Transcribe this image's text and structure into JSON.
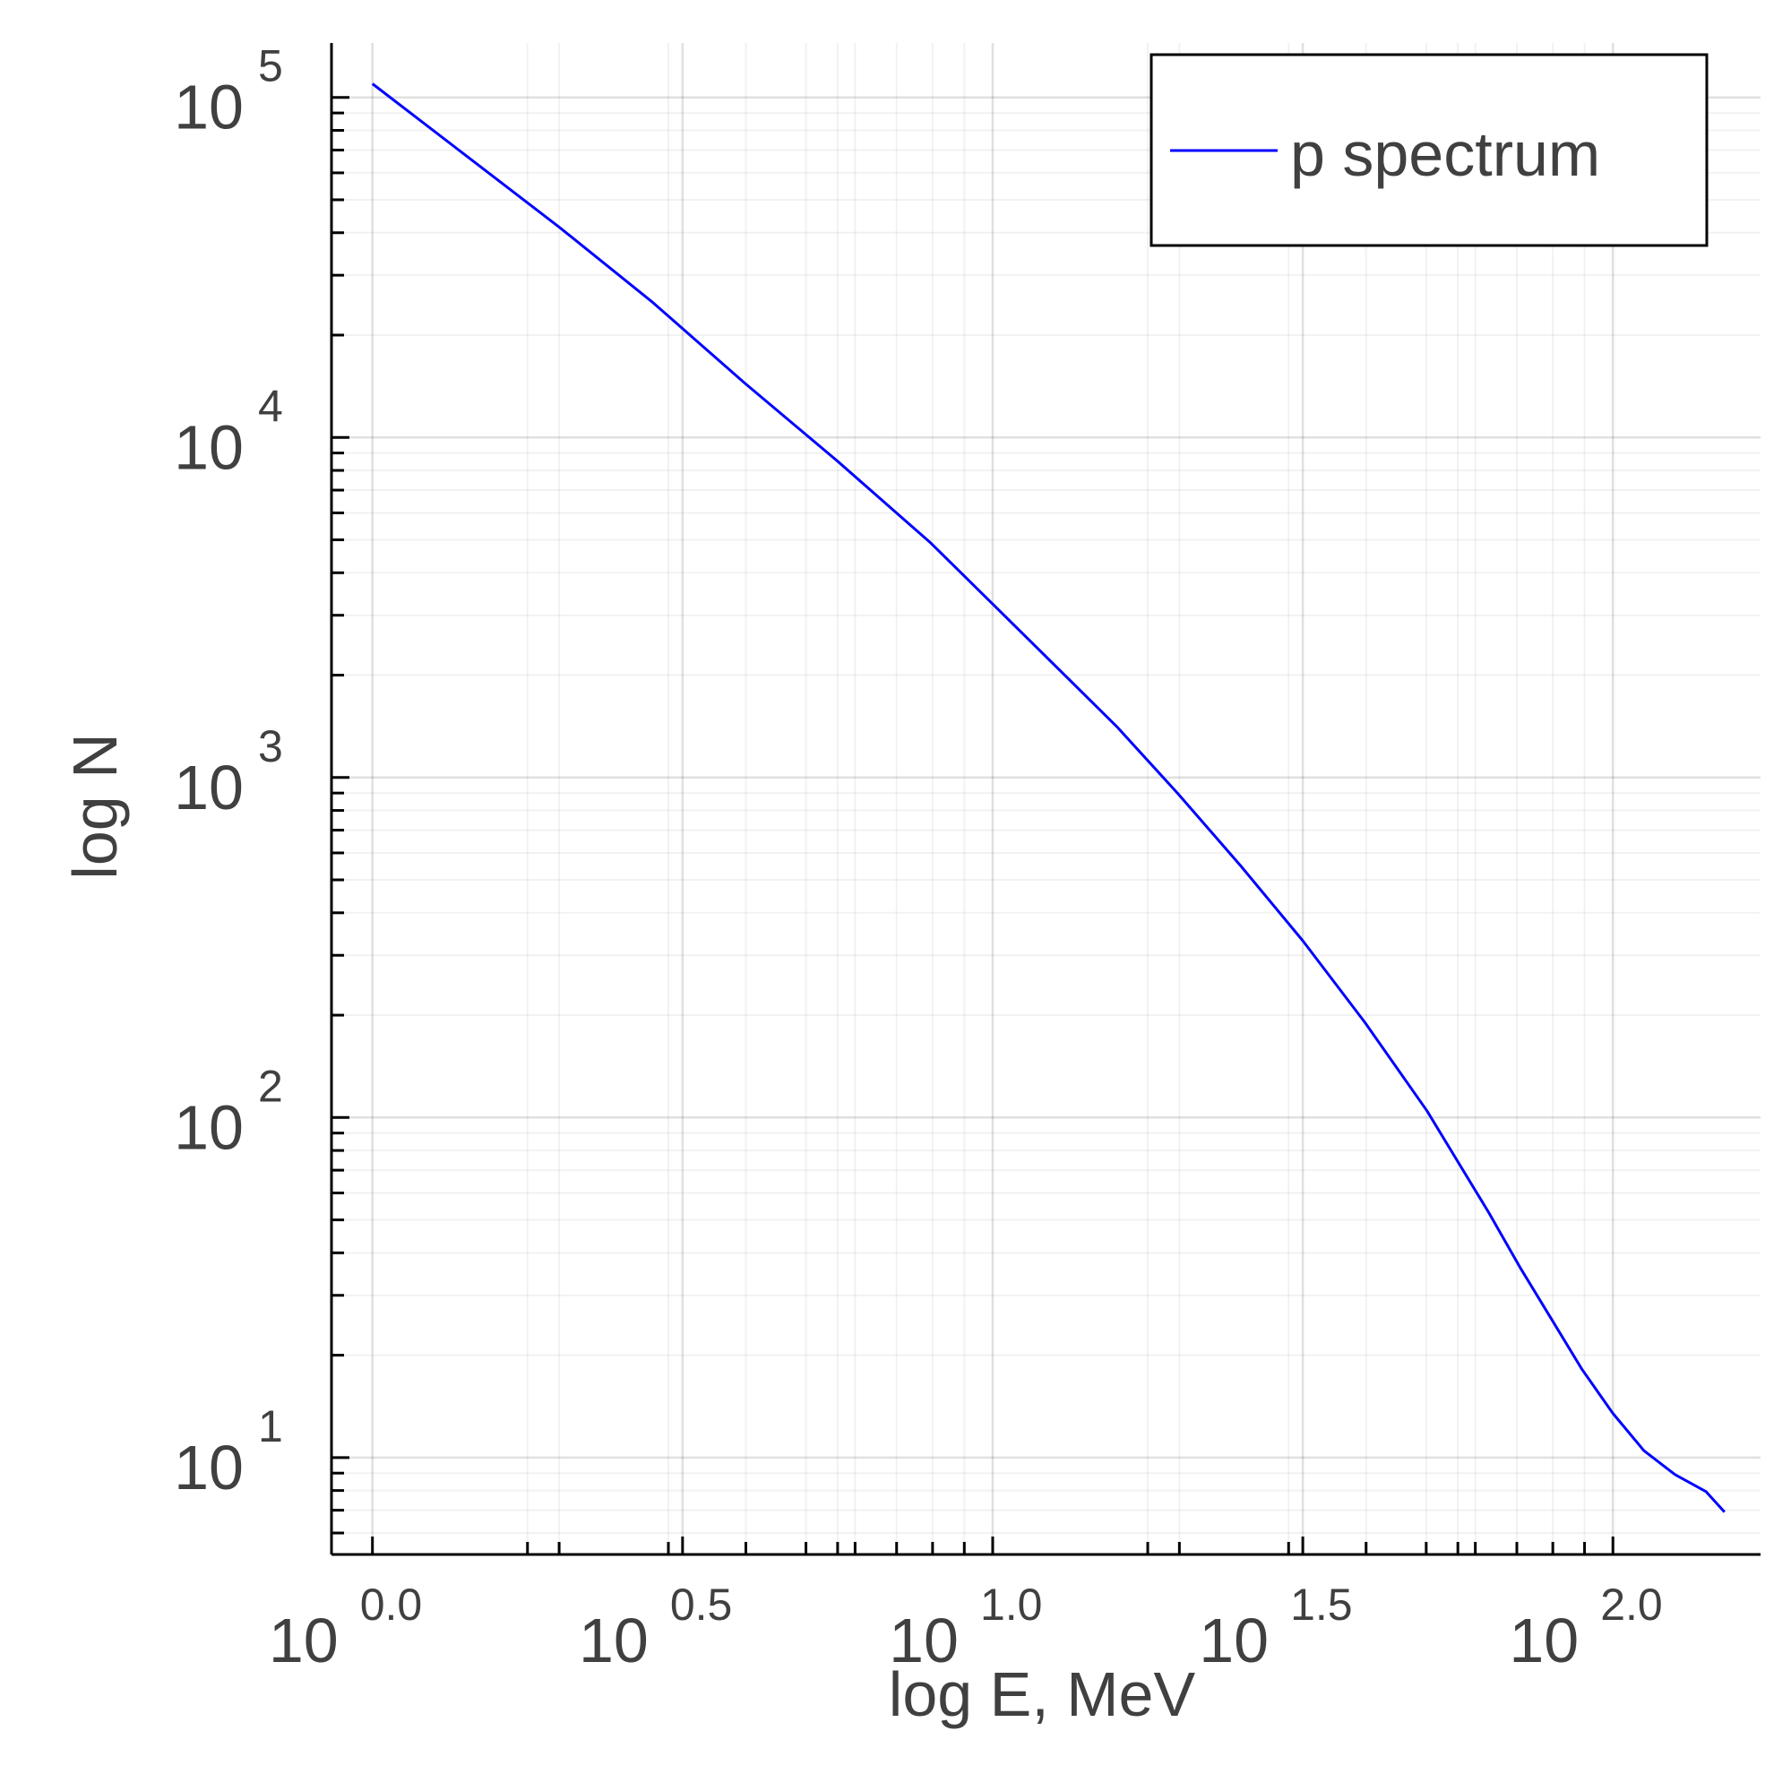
{
  "chart_data": {
    "type": "line",
    "xscale": "log10",
    "yscale": "log10",
    "xlim_log10": [
      -0.066,
      2.238
    ],
    "ylim_log10": [
      0.715,
      5.16
    ],
    "x_ticks": [
      {
        "base": "10",
        "exp": "0.0",
        "value_log10": 0.0
      },
      {
        "base": "10",
        "exp": "0.5",
        "value_log10": 0.5
      },
      {
        "base": "10",
        "exp": "1.0",
        "value_log10": 1.0
      },
      {
        "base": "10",
        "exp": "1.5",
        "value_log10": 1.5
      },
      {
        "base": "10",
        "exp": "2.0",
        "value_log10": 2.0
      }
    ],
    "y_ticks": [
      {
        "base": "10",
        "exp": "1",
        "value_log10": 1
      },
      {
        "base": "10",
        "exp": "2",
        "value_log10": 2
      },
      {
        "base": "10",
        "exp": "3",
        "value_log10": 3
      },
      {
        "base": "10",
        "exp": "4",
        "value_log10": 4
      },
      {
        "base": "10",
        "exp": "5",
        "value_log10": 5
      }
    ],
    "xlabel": "log E, MeV",
    "ylabel": "log N",
    "grid": true,
    "legend": {
      "position": "top-right"
    },
    "series": [
      {
        "name": "p spectrum",
        "color": "#0000ff",
        "x_log10": [
          0.0,
          0.15,
          0.3,
          0.45,
          0.6,
          0.75,
          0.9,
          1.0,
          1.1,
          1.2,
          1.3,
          1.4,
          1.5,
          1.6,
          1.7,
          1.8,
          1.85,
          1.9,
          1.95,
          2.0,
          2.05,
          2.1,
          2.15,
          2.18
        ],
        "y_log10": [
          5.04,
          4.83,
          4.62,
          4.4,
          4.16,
          3.93,
          3.69,
          3.51,
          3.33,
          3.15,
          2.95,
          2.74,
          2.52,
          2.28,
          2.02,
          1.72,
          1.56,
          1.41,
          1.26,
          1.13,
          1.02,
          0.95,
          0.9,
          0.84
        ]
      }
    ]
  }
}
